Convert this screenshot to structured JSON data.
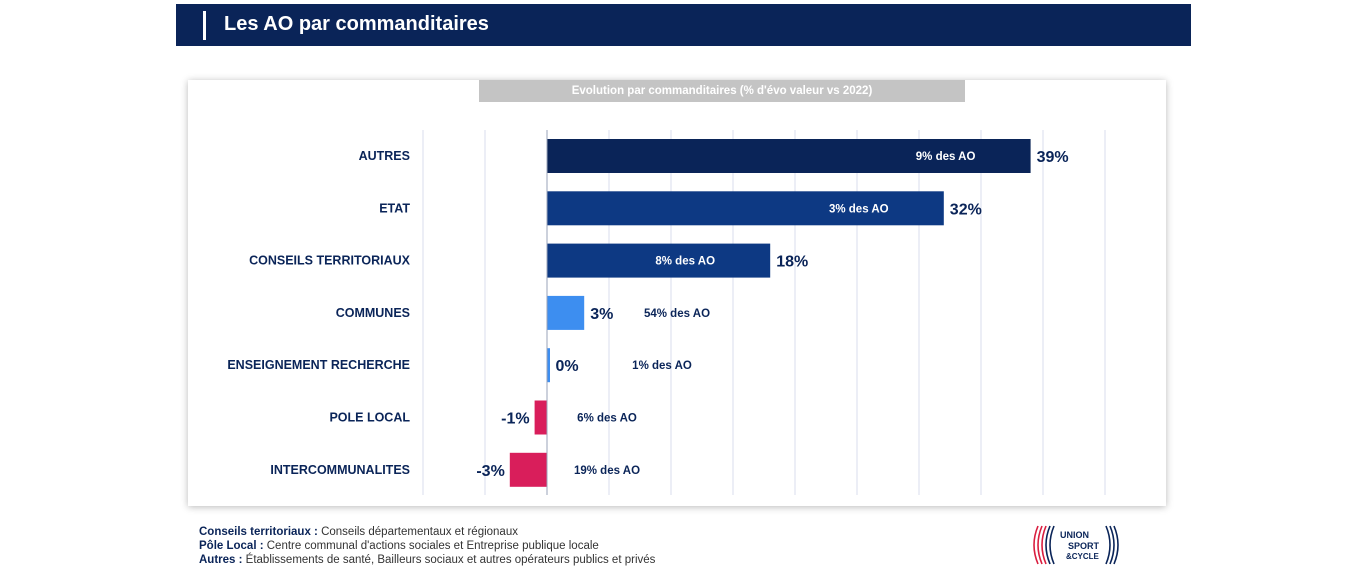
{
  "header": {
    "title": "Les AO par commanditaires"
  },
  "chart_data": {
    "type": "bar",
    "orientation": "horizontal",
    "title": "Evolution par commanditaires (% d'évo valeur vs 2022)",
    "categories": [
      "AUTRES",
      "ETAT",
      "CONSEILS TERRITORIAUX",
      "COMMUNES",
      "ENSEIGNEMENT RECHERCHE",
      "POLE LOCAL",
      "INTERCOMMUNALITES"
    ],
    "values": [
      39,
      32,
      18,
      3,
      0.2,
      -1,
      -3
    ],
    "value_labels": [
      "39%",
      "32%",
      "18%",
      "3%",
      "0%",
      "-1%",
      "-3%"
    ],
    "share_labels": [
      "9% des AO",
      "3% des AO",
      "8% des AO",
      "54% des AO",
      "1% des AO",
      "6% des AO",
      "19% des AO"
    ],
    "colors": [
      "#0a2458",
      "#0d3983",
      "#0d3983",
      "#3d8ef0",
      "#3d8ef0",
      "#d91e5b",
      "#d91e5b"
    ],
    "xlim": [
      -10,
      45
    ],
    "grid": true,
    "legend": "none"
  },
  "notes": [
    {
      "term": "Conseils territoriaux :",
      "text": "Conseils départementaux et régionaux"
    },
    {
      "term": "Pôle Local :",
      "text": "Centre communal d'actions sociales et Entreprise publique locale"
    },
    {
      "term": "Autres :",
      "text": "Établissements de santé, Bailleurs sociaux et autres opérateurs publics et privés"
    }
  ],
  "logo": {
    "line1": "UNION",
    "line2": "SPORT",
    "line3": "&CYCLE",
    "color_red": "#d91e3f",
    "color_blue": "#0a2458"
  }
}
